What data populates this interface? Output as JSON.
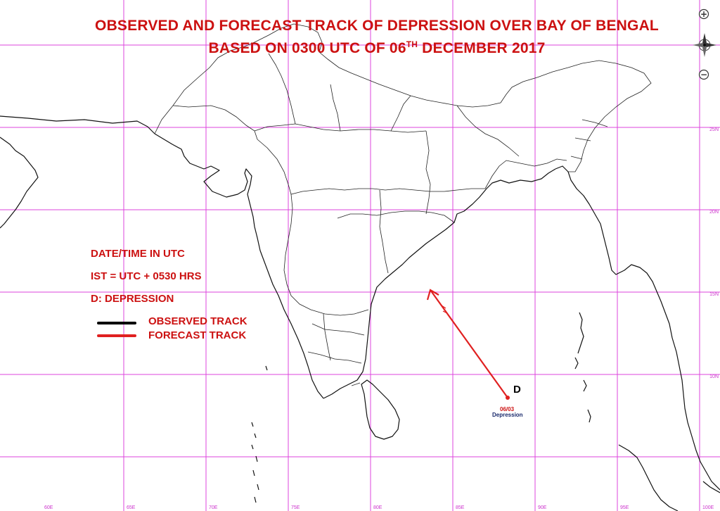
{
  "title": {
    "line1": "OBSERVED AND FORECAST TRACK OF DEPRESSION OVER BAY OF BENGAL",
    "line2_pre": "BASED ON 0300 UTC OF 06",
    "line2_sup": "TH",
    "line2_post": " DECEMBER 2017"
  },
  "legend": {
    "datetime": "DATE/TIME IN UTC",
    "ist": "IST = UTC + 0530 HRS",
    "depression": "D: DEPRESSION",
    "observed": "OBSERVED TRACK",
    "forecast": "FORECAST TRACK",
    "observed_color": "#000000",
    "forecast_color": "#e02020"
  },
  "grid": {
    "color": "#dd44dd",
    "lat_labels": [
      "25N",
      "20N",
      "15N",
      "10N"
    ],
    "lon_labels": [
      "60E",
      "65E",
      "70E",
      "75E",
      "80E",
      "85E",
      "90E",
      "95E",
      "100E"
    ]
  },
  "storm": {
    "symbol": "D",
    "datetime": "06/03",
    "stage": "Depression",
    "observed_position": {
      "lat": 10.2,
      "lon": 88.4
    },
    "forecast_position": {
      "lat": 15.3,
      "lon": 83.2
    }
  },
  "toolbar": {
    "zoom_in": "+",
    "zoom_out": "−"
  }
}
